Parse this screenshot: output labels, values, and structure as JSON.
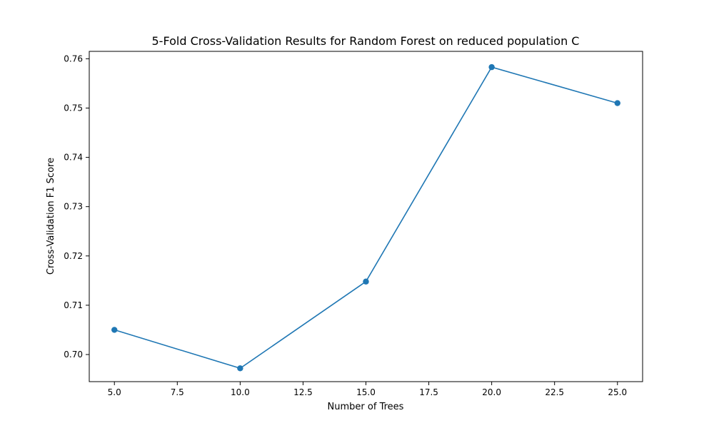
{
  "chart_data": {
    "type": "line",
    "title": "5-Fold Cross-Validation Results for Random Forest on reduced population C",
    "xlabel": "Number of Trees",
    "ylabel": "Cross-Validation F1 Score",
    "xlim": [
      4.0,
      26.0
    ],
    "ylim": [
      0.6945,
      0.7615
    ],
    "xticks": [
      5.0,
      7.5,
      10.0,
      12.5,
      15.0,
      17.5,
      20.0,
      22.5,
      25.0
    ],
    "xtick_labels": [
      "5.0",
      "7.5",
      "10.0",
      "12.5",
      "15.0",
      "17.5",
      "20.0",
      "22.5",
      "25.0"
    ],
    "yticks": [
      0.7,
      0.71,
      0.72,
      0.73,
      0.74,
      0.75,
      0.76
    ],
    "ytick_labels": [
      "0.70",
      "0.71",
      "0.72",
      "0.73",
      "0.74",
      "0.75",
      "0.76"
    ],
    "grid": false,
    "series": [
      {
        "x": [
          5,
          10,
          15,
          20,
          25
        ],
        "values": [
          0.705,
          0.6972,
          0.7148,
          0.7583,
          0.751
        ],
        "color": "#1f77b4",
        "marker": "circle"
      }
    ]
  }
}
